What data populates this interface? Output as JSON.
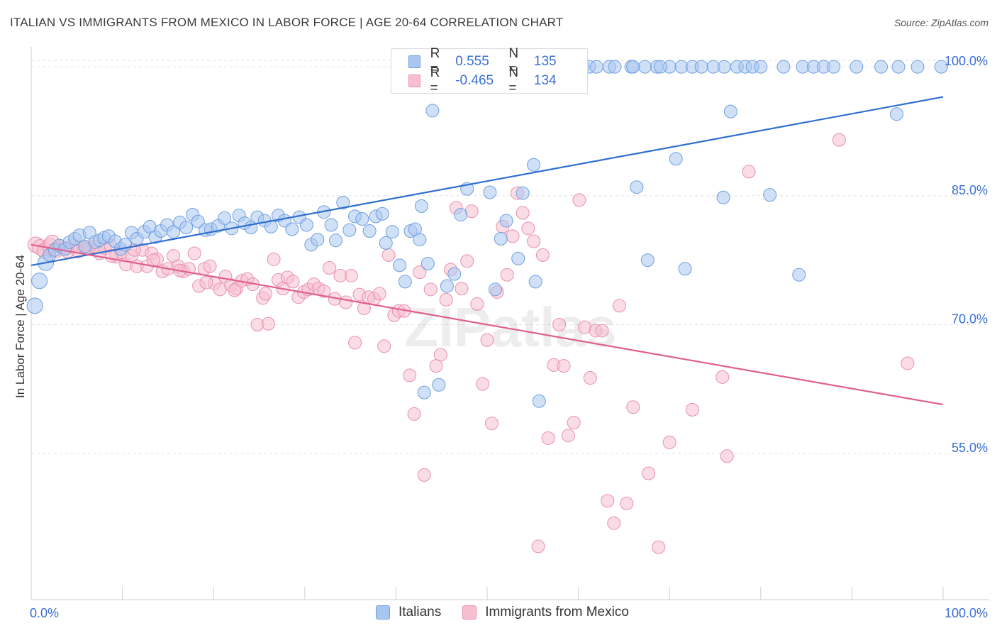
{
  "header": {
    "title": "ITALIAN VS IMMIGRANTS FROM MEXICO IN LABOR FORCE | AGE 20-64 CORRELATION CHART",
    "source": "Source: ZipAtlas.com"
  },
  "legend": {
    "series": [
      {
        "r_label": "R =",
        "r_value": "0.555",
        "n_label": "N =",
        "n_value": "135"
      },
      {
        "r_label": "R =",
        "r_value": "-0.465",
        "n_label": "N =",
        "n_value": "134"
      }
    ]
  },
  "bottom_legend": [
    "Italians",
    "Immigrants from Mexico"
  ],
  "watermark": "ZIPatlas",
  "colors": {
    "blue_fill": "#a9c6f0",
    "blue_stroke": "#6f9fe0",
    "blue_line": "#2f6fd0",
    "pink_fill": "#f6bfd0",
    "pink_stroke": "#e98fae",
    "pink_line": "#e0608c",
    "tick_label": "#3b6fd4",
    "grid": "#e2e2e2"
  },
  "chart_data": {
    "type": "scatter",
    "title": "ITALIAN VS IMMIGRANTS FROM MEXICO IN LABOR FORCE | AGE 20-64 CORRELATION CHART",
    "xlabel": "",
    "ylabel": "In Labor Force | Age 20-64",
    "xlim": [
      0,
      100
    ],
    "ylim": [
      38,
      101.5
    ],
    "x_tick_labels": [
      "0.0%",
      "100.0%"
    ],
    "y_ticks": [
      55,
      70,
      85,
      100
    ],
    "y_tick_labels": [
      "55.0%",
      "70.0%",
      "85.0%",
      "100.0%"
    ],
    "grid": true,
    "legend_position": "top-center",
    "series": [
      {
        "name": "Italians",
        "color": "#a9c6f0",
        "trend": {
          "x": [
            0,
            100
          ],
          "y": [
            76.9,
            96.5
          ]
        },
        "points": [
          [
            0.4,
            72.2
          ],
          [
            0.9,
            75.1
          ],
          [
            1.6,
            77.2
          ],
          [
            2.0,
            78.1
          ],
          [
            2.6,
            78.7
          ],
          [
            3.1,
            79.2
          ],
          [
            3.7,
            78.8
          ],
          [
            4.2,
            79.6
          ],
          [
            4.8,
            80.0
          ],
          [
            5.3,
            80.4
          ],
          [
            5.9,
            79.1
          ],
          [
            6.4,
            80.7
          ],
          [
            7.0,
            79.6
          ],
          [
            7.5,
            79.8
          ],
          [
            8.0,
            80.1
          ],
          [
            8.5,
            80.3
          ],
          [
            9.2,
            79.7
          ],
          [
            9.8,
            78.8
          ],
          [
            10.3,
            79.3
          ],
          [
            11.0,
            80.7
          ],
          [
            11.6,
            80.0
          ],
          [
            12.4,
            80.8
          ],
          [
            13.0,
            81.4
          ],
          [
            13.6,
            80.2
          ],
          [
            14.2,
            80.9
          ],
          [
            14.9,
            81.6
          ],
          [
            15.6,
            80.8
          ],
          [
            16.3,
            81.9
          ],
          [
            17.0,
            81.3
          ],
          [
            17.7,
            82.8
          ],
          [
            18.3,
            82.0
          ],
          [
            19.1,
            81.0
          ],
          [
            19.7,
            81.1
          ],
          [
            20.5,
            81.5
          ],
          [
            21.2,
            82.4
          ],
          [
            22.0,
            81.2
          ],
          [
            22.8,
            82.7
          ],
          [
            23.4,
            81.8
          ],
          [
            24.1,
            81.3
          ],
          [
            24.8,
            82.5
          ],
          [
            25.6,
            82.1
          ],
          [
            26.3,
            81.4
          ],
          [
            27.1,
            82.7
          ],
          [
            27.8,
            82.1
          ],
          [
            28.6,
            81.1
          ],
          [
            29.4,
            82.5
          ],
          [
            30.2,
            81.6
          ],
          [
            30.7,
            79.3
          ],
          [
            31.4,
            79.9
          ],
          [
            32.1,
            83.1
          ],
          [
            32.9,
            81.6
          ],
          [
            33.4,
            79.8
          ],
          [
            34.2,
            84.2
          ],
          [
            34.9,
            81.0
          ],
          [
            35.5,
            82.6
          ],
          [
            36.3,
            82.3
          ],
          [
            37.1,
            80.9
          ],
          [
            37.8,
            82.6
          ],
          [
            38.5,
            82.9
          ],
          [
            38.9,
            79.5
          ],
          [
            39.6,
            80.8
          ],
          [
            40.4,
            76.9
          ],
          [
            41.0,
            75.0
          ],
          [
            41.6,
            80.9
          ],
          [
            42.1,
            81.1
          ],
          [
            42.6,
            79.9
          ],
          [
            42.8,
            83.8
          ],
          [
            43.1,
            62.1
          ],
          [
            43.5,
            77.1
          ],
          [
            44.0,
            94.9
          ],
          [
            44.7,
            63.0
          ],
          [
            45.6,
            74.5
          ],
          [
            46.4,
            75.9
          ],
          [
            47.1,
            82.8
          ],
          [
            47.8,
            85.8
          ],
          [
            50.3,
            85.4
          ],
          [
            50.9,
            74.1
          ],
          [
            51.5,
            80.0
          ],
          [
            52.1,
            82.1
          ],
          [
            53.4,
            77.7
          ],
          [
            53.9,
            85.3
          ],
          [
            55.3,
            75.0
          ],
          [
            55.7,
            61.1
          ],
          [
            55.1,
            88.6
          ],
          [
            57.3,
            100.0
          ],
          [
            59.6,
            100.0
          ],
          [
            60.1,
            100.0
          ],
          [
            60.5,
            100.0
          ],
          [
            63.4,
            100.0
          ],
          [
            66.4,
            86.0
          ],
          [
            68.6,
            100.0
          ],
          [
            71.3,
            100.0
          ],
          [
            72.5,
            100.0
          ],
          [
            74.8,
            100.0
          ],
          [
            77.4,
            100.0
          ],
          [
            78.3,
            100.0
          ],
          [
            79.1,
            100.0
          ],
          [
            84.6,
            100.0
          ],
          [
            85.8,
            100.0
          ],
          [
            86.9,
            100.0
          ],
          [
            90.5,
            100.0
          ],
          [
            93.2,
            100.0
          ],
          [
            95.1,
            100.0
          ],
          [
            97.2,
            100.0
          ],
          [
            99.8,
            100.0
          ],
          [
            67.6,
            77.5
          ],
          [
            70.7,
            89.3
          ],
          [
            71.7,
            76.5
          ],
          [
            75.9,
            84.8
          ],
          [
            76.7,
            94.8
          ],
          [
            81.0,
            85.1
          ],
          [
            84.2,
            75.8
          ],
          [
            94.9,
            94.5
          ],
          [
            59.9,
            100.0
          ],
          [
            61.2,
            100.0
          ],
          [
            65.8,
            100.0
          ],
          [
            67.3,
            100.0
          ],
          [
            70.0,
            100.0
          ],
          [
            45.0,
            100.0
          ],
          [
            46.9,
            100.0
          ],
          [
            49.1,
            100.0
          ],
          [
            51.8,
            100.0
          ],
          [
            53.0,
            100.0
          ],
          [
            54.6,
            100.0
          ],
          [
            56.4,
            100.0
          ],
          [
            58.0,
            100.0
          ],
          [
            62.0,
            100.0
          ],
          [
            64.0,
            100.0
          ],
          [
            66.0,
            100.0
          ],
          [
            69.0,
            100.0
          ],
          [
            73.5,
            100.0
          ],
          [
            76.0,
            100.0
          ],
          [
            80.0,
            100.0
          ],
          [
            82.5,
            100.0
          ],
          [
            88.0,
            100.0
          ]
        ]
      },
      {
        "name": "Immigrants from Mexico",
        "color": "#f6bfd0",
        "trend": {
          "x": [
            0,
            100
          ],
          "y": [
            79.3,
            60.7
          ]
        },
        "points": [
          [
            0.5,
            79.3
          ],
          [
            1.0,
            79.0
          ],
          [
            1.5,
            78.6
          ],
          [
            2.1,
            79.1
          ],
          [
            2.7,
            78.7
          ],
          [
            3.3,
            79.0
          ],
          [
            3.9,
            78.9
          ],
          [
            4.5,
            79.2
          ],
          [
            5.1,
            78.5
          ],
          [
            5.7,
            79.0
          ],
          [
            6.3,
            78.8
          ],
          [
            6.9,
            79.1
          ],
          [
            7.5,
            78.3
          ],
          [
            8.1,
            78.9
          ],
          [
            8.7,
            79.2
          ],
          [
            9.3,
            77.9
          ],
          [
            9.9,
            78.4
          ],
          [
            10.4,
            77.0
          ],
          [
            11.0,
            78.0
          ],
          [
            11.6,
            76.8
          ],
          [
            12.2,
            78.7
          ],
          [
            12.7,
            76.8
          ],
          [
            13.2,
            78.3
          ],
          [
            13.8,
            77.6
          ],
          [
            14.4,
            76.2
          ],
          [
            15.0,
            76.5
          ],
          [
            15.6,
            78.0
          ],
          [
            16.1,
            76.8
          ],
          [
            16.7,
            76.2
          ],
          [
            17.3,
            76.5
          ],
          [
            17.9,
            78.3
          ],
          [
            18.4,
            74.5
          ],
          [
            19.0,
            76.5
          ],
          [
            19.6,
            76.8
          ],
          [
            20.1,
            74.8
          ],
          [
            20.7,
            74.1
          ],
          [
            21.3,
            75.6
          ],
          [
            21.9,
            74.6
          ],
          [
            22.5,
            74.2
          ],
          [
            23.1,
            75.1
          ],
          [
            23.7,
            75.3
          ],
          [
            24.3,
            74.7
          ],
          [
            24.8,
            70.0
          ],
          [
            25.4,
            73.1
          ],
          [
            26.0,
            70.1
          ],
          [
            26.6,
            77.6
          ],
          [
            27.1,
            75.2
          ],
          [
            27.6,
            74.2
          ],
          [
            28.1,
            75.5
          ],
          [
            28.7,
            75.0
          ],
          [
            29.3,
            73.2
          ],
          [
            29.9,
            73.8
          ],
          [
            30.4,
            74.1
          ],
          [
            31.0,
            74.7
          ],
          [
            31.5,
            74.2
          ],
          [
            32.1,
            73.9
          ],
          [
            32.7,
            76.6
          ],
          [
            33.3,
            73.0
          ],
          [
            33.9,
            75.7
          ],
          [
            34.5,
            72.6
          ],
          [
            35.1,
            75.7
          ],
          [
            35.5,
            67.9
          ],
          [
            36.0,
            73.5
          ],
          [
            36.5,
            71.9
          ],
          [
            37.0,
            73.2
          ],
          [
            37.6,
            73.0
          ],
          [
            38.2,
            73.6
          ],
          [
            38.7,
            67.5
          ],
          [
            39.2,
            78.1
          ],
          [
            39.8,
            71.1
          ],
          [
            40.3,
            71.6
          ],
          [
            40.9,
            71.6
          ],
          [
            41.5,
            64.1
          ],
          [
            42.0,
            59.6
          ],
          [
            42.6,
            76.1
          ],
          [
            43.1,
            52.5
          ],
          [
            43.8,
            74.1
          ],
          [
            44.4,
            65.2
          ],
          [
            44.9,
            66.5
          ],
          [
            45.5,
            72.9
          ],
          [
            46.0,
            76.4
          ],
          [
            46.6,
            83.6
          ],
          [
            47.2,
            74.2
          ],
          [
            47.8,
            77.4
          ],
          [
            48.3,
            83.2
          ],
          [
            48.9,
            72.4
          ],
          [
            49.5,
            63.1
          ],
          [
            50.0,
            68.2
          ],
          [
            50.5,
            58.5
          ],
          [
            51.1,
            73.8
          ],
          [
            51.7,
            81.4
          ],
          [
            52.2,
            75.8
          ],
          [
            52.8,
            80.3
          ],
          [
            53.3,
            85.3
          ],
          [
            53.9,
            83.0
          ],
          [
            54.5,
            81.2
          ],
          [
            55.1,
            79.7
          ],
          [
            55.6,
            44.2
          ],
          [
            56.1,
            78.1
          ],
          [
            56.7,
            56.8
          ],
          [
            57.3,
            65.3
          ],
          [
            57.9,
            70.0
          ],
          [
            58.4,
            65.2
          ],
          [
            58.9,
            57.1
          ],
          [
            59.5,
            58.6
          ],
          [
            60.1,
            84.5
          ],
          [
            60.7,
            69.7
          ],
          [
            61.3,
            63.8
          ],
          [
            61.9,
            69.3
          ],
          [
            62.6,
            69.3
          ],
          [
            63.2,
            49.5
          ],
          [
            63.9,
            46.9
          ],
          [
            64.5,
            72.2
          ],
          [
            65.3,
            49.2
          ],
          [
            66.0,
            60.4
          ],
          [
            67.7,
            52.7
          ],
          [
            68.8,
            44.1
          ],
          [
            70.0,
            56.3
          ],
          [
            72.5,
            60.1
          ],
          [
            75.8,
            63.9
          ],
          [
            76.3,
            54.7
          ],
          [
            78.7,
            87.8
          ],
          [
            88.6,
            91.5
          ],
          [
            96.1,
            65.5
          ],
          [
            2.3,
            79.5
          ],
          [
            4.0,
            78.5
          ],
          [
            6.0,
            78.9
          ],
          [
            8.8,
            78.0
          ],
          [
            11.3,
            78.7
          ],
          [
            13.4,
            77.5
          ],
          [
            16.3,
            76.3
          ],
          [
            19.2,
            74.9
          ],
          [
            22.3,
            74.0
          ],
          [
            25.7,
            73.6
          ]
        ]
      }
    ]
  }
}
